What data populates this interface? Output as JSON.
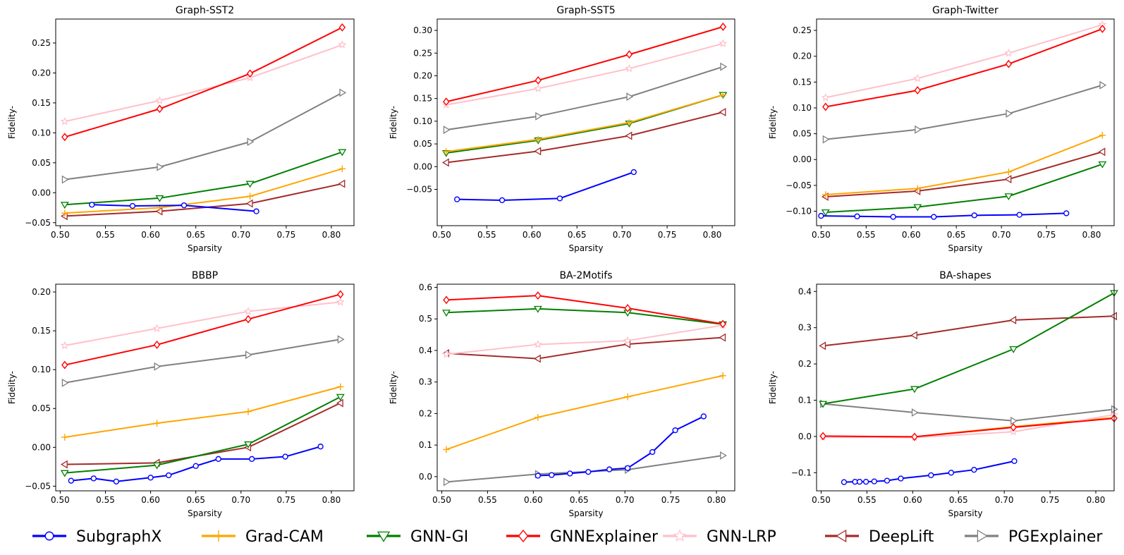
{
  "series_styles": [
    {
      "key": "SubgraphX",
      "color": "#0000ff",
      "marker": "circle"
    },
    {
      "key": "Grad-CAM",
      "color": "#ffa500",
      "marker": "plus"
    },
    {
      "key": "GNN-GI",
      "color": "#008000",
      "marker": "triangle-down"
    },
    {
      "key": "GNNExplainer",
      "color": "#ff0000",
      "marker": "diamond"
    },
    {
      "key": "GNN-LRP",
      "color": "#ffc0cb",
      "marker": "star"
    },
    {
      "key": "DeepLift",
      "color": "#a52a2a",
      "marker": "triangle-left"
    },
    {
      "key": "PGExplainer",
      "color": "#808080",
      "marker": "triangle-right"
    }
  ],
  "legend": {
    "placement": "bottom",
    "items": [
      "SubgraphX",
      "Grad-CAM",
      "GNN-GI",
      "GNNExplainer",
      "GNN-LRP",
      "DeepLift",
      "PGExplainer"
    ]
  },
  "chart_data": [
    {
      "type": "line",
      "title": "Graph-SST2",
      "xlabel": "Sparsity",
      "ylabel": "Fidelity-",
      "xlim": [
        0.495,
        0.825
      ],
      "ylim": [
        -0.055,
        0.29
      ],
      "xticks": [
        "0.50",
        "0.55",
        "0.60",
        "0.65",
        "0.70",
        "0.75",
        "0.80"
      ],
      "yticks": [
        "−0.05",
        "0.00",
        "0.05",
        "0.10",
        "0.15",
        "0.20",
        "0.25"
      ],
      "series": [
        {
          "name": "SubgraphX",
          "x": [
            0.535,
            0.58,
            0.637,
            0.717
          ],
          "y": [
            -0.02,
            -0.022,
            -0.021,
            -0.031
          ]
        },
        {
          "name": "Grad-CAM",
          "x": [
            0.505,
            0.61,
            0.71,
            0.812
          ],
          "y": [
            -0.034,
            -0.025,
            -0.006,
            0.04
          ]
        },
        {
          "name": "GNN-GI",
          "x": [
            0.505,
            0.61,
            0.71,
            0.812
          ],
          "y": [
            -0.02,
            -0.009,
            0.015,
            0.068
          ]
        },
        {
          "name": "GNNExplainer",
          "x": [
            0.505,
            0.61,
            0.71,
            0.812
          ],
          "y": [
            0.093,
            0.14,
            0.199,
            0.276
          ]
        },
        {
          "name": "GNN-LRP",
          "x": [
            0.505,
            0.61,
            0.71,
            0.812
          ],
          "y": [
            0.119,
            0.154,
            0.192,
            0.247
          ]
        },
        {
          "name": "DeepLift",
          "x": [
            0.505,
            0.61,
            0.71,
            0.812
          ],
          "y": [
            -0.039,
            -0.031,
            -0.018,
            0.015
          ]
        },
        {
          "name": "PGExplainer",
          "x": [
            0.505,
            0.61,
            0.71,
            0.812
          ],
          "y": [
            0.022,
            0.043,
            0.085,
            0.167
          ]
        }
      ]
    },
    {
      "type": "line",
      "title": "Graph-SST5",
      "xlabel": "Sparsity",
      "ylabel": "Fidelity-",
      "xlim": [
        0.495,
        0.825
      ],
      "ylim": [
        -0.13,
        0.325
      ],
      "xticks": [
        "0.50",
        "0.55",
        "0.60",
        "0.65",
        "0.70",
        "0.75",
        "0.80"
      ],
      "yticks": [
        "−0.05",
        "0.00",
        "0.05",
        "0.10",
        "0.15",
        "0.20",
        "0.25",
        "0.30"
      ],
      "series": [
        {
          "name": "SubgraphX",
          "x": [
            0.517,
            0.567,
            0.631,
            0.713
          ],
          "y": [
            -0.072,
            -0.074,
            -0.07,
            -0.012
          ]
        },
        {
          "name": "Grad-CAM",
          "x": [
            0.505,
            0.607,
            0.708,
            0.812
          ],
          "y": [
            0.033,
            0.06,
            0.097,
            0.158
          ]
        },
        {
          "name": "GNN-GI",
          "x": [
            0.505,
            0.607,
            0.708,
            0.812
          ],
          "y": [
            0.03,
            0.058,
            0.095,
            0.158
          ]
        },
        {
          "name": "GNNExplainer",
          "x": [
            0.505,
            0.607,
            0.708,
            0.812
          ],
          "y": [
            0.143,
            0.19,
            0.247,
            0.308
          ]
        },
        {
          "name": "GNN-LRP",
          "x": [
            0.505,
            0.607,
            0.708,
            0.812
          ],
          "y": [
            0.136,
            0.172,
            0.216,
            0.271
          ]
        },
        {
          "name": "DeepLift",
          "x": [
            0.505,
            0.607,
            0.708,
            0.812
          ],
          "y": [
            0.009,
            0.034,
            0.068,
            0.12
          ]
        },
        {
          "name": "PGExplainer",
          "x": [
            0.505,
            0.607,
            0.708,
            0.812
          ],
          "y": [
            0.081,
            0.111,
            0.154,
            0.22
          ]
        }
      ]
    },
    {
      "type": "line",
      "title": "Graph-Twitter",
      "xlabel": "Sparsity",
      "ylabel": "Fidelity-",
      "xlim": [
        0.495,
        0.825
      ],
      "ylim": [
        -0.128,
        0.272
      ],
      "xticks": [
        "0.50",
        "0.55",
        "0.60",
        "0.65",
        "0.70",
        "0.75",
        "0.80"
      ],
      "yticks": [
        "−0.10",
        "−0.05",
        "0.00",
        "0.05",
        "0.10",
        "0.15",
        "0.20",
        "0.25"
      ],
      "series": [
        {
          "name": "SubgraphX",
          "x": [
            0.5,
            0.54,
            0.58,
            0.625,
            0.67,
            0.72,
            0.772
          ],
          "y": [
            -0.109,
            -0.11,
            -0.111,
            -0.111,
            -0.108,
            -0.107,
            -0.104
          ]
        },
        {
          "name": "Grad-CAM",
          "x": [
            0.505,
            0.607,
            0.708,
            0.812
          ],
          "y": [
            -0.068,
            -0.056,
            -0.024,
            0.047
          ]
        },
        {
          "name": "GNN-GI",
          "x": [
            0.505,
            0.607,
            0.708,
            0.812
          ],
          "y": [
            -0.102,
            -0.092,
            -0.071,
            -0.009
          ]
        },
        {
          "name": "GNNExplainer",
          "x": [
            0.505,
            0.607,
            0.708,
            0.812
          ],
          "y": [
            0.102,
            0.134,
            0.185,
            0.253
          ]
        },
        {
          "name": "GNN-LRP",
          "x": [
            0.505,
            0.607,
            0.708,
            0.812
          ],
          "y": [
            0.12,
            0.157,
            0.206,
            0.261
          ]
        },
        {
          "name": "DeepLift",
          "x": [
            0.505,
            0.607,
            0.708,
            0.812
          ],
          "y": [
            -0.072,
            -0.061,
            -0.038,
            0.015
          ]
        },
        {
          "name": "PGExplainer",
          "x": [
            0.505,
            0.607,
            0.708,
            0.812
          ],
          "y": [
            0.039,
            0.058,
            0.089,
            0.144
          ]
        }
      ]
    },
    {
      "type": "line",
      "title": "BBBP",
      "xlabel": "Sparsity",
      "ylabel": "Fidelity-",
      "xlim": [
        0.495,
        0.825
      ],
      "ylim": [
        -0.056,
        0.21
      ],
      "xticks": [
        "0.50",
        "0.55",
        "0.60",
        "0.65",
        "0.70",
        "0.75",
        "0.80"
      ],
      "yticks": [
        "−0.05",
        "0.00",
        "0.05",
        "0.10",
        "0.15",
        "0.20"
      ],
      "series": [
        {
          "name": "SubgraphX",
          "x": [
            0.512,
            0.537,
            0.562,
            0.6,
            0.62,
            0.65,
            0.675,
            0.712,
            0.749,
            0.788
          ],
          "y": [
            -0.043,
            -0.04,
            -0.044,
            -0.039,
            -0.036,
            -0.024,
            -0.015,
            -0.015,
            -0.012,
            0.001
          ]
        },
        {
          "name": "Grad-CAM",
          "x": [
            0.505,
            0.607,
            0.708,
            0.81
          ],
          "y": [
            0.013,
            0.031,
            0.046,
            0.078
          ]
        },
        {
          "name": "GNN-GI",
          "x": [
            0.505,
            0.607,
            0.708,
            0.81
          ],
          "y": [
            -0.033,
            -0.023,
            0.004,
            0.065
          ]
        },
        {
          "name": "GNNExplainer",
          "x": [
            0.505,
            0.607,
            0.708,
            0.81
          ],
          "y": [
            0.106,
            0.132,
            0.165,
            0.197
          ]
        },
        {
          "name": "GNN-LRP",
          "x": [
            0.505,
            0.607,
            0.708,
            0.81
          ],
          "y": [
            0.131,
            0.153,
            0.175,
            0.187
          ]
        },
        {
          "name": "DeepLift",
          "x": [
            0.505,
            0.607,
            0.708,
            0.81
          ],
          "y": [
            -0.022,
            -0.02,
            0.0,
            0.057
          ]
        },
        {
          "name": "PGExplainer",
          "x": [
            0.505,
            0.607,
            0.708,
            0.81
          ],
          "y": [
            0.083,
            0.104,
            0.119,
            0.139
          ]
        }
      ]
    },
    {
      "type": "line",
      "title": "BA-2Motifs",
      "xlabel": "Sparsity",
      "ylabel": "Fidelity-",
      "xlim": [
        0.495,
        0.82
      ],
      "ylim": [
        -0.045,
        0.61
      ],
      "xticks": [
        "0.50",
        "0.55",
        "0.60",
        "0.65",
        "0.70",
        "0.75",
        "0.80"
      ],
      "yticks": [
        "0.0",
        "0.1",
        "0.2",
        "0.3",
        "0.4",
        "0.5",
        "0.6"
      ],
      "series": [
        {
          "name": "SubgraphX",
          "x": [
            0.605,
            0.62,
            0.64,
            0.66,
            0.683,
            0.703,
            0.73,
            0.755,
            0.786
          ],
          "y": [
            0.003,
            0.005,
            0.01,
            0.015,
            0.023,
            0.027,
            0.078,
            0.147,
            0.191
          ]
        },
        {
          "name": "Grad-CAM",
          "x": [
            0.505,
            0.605,
            0.703,
            0.807
          ],
          "y": [
            0.086,
            0.188,
            0.253,
            0.32
          ]
        },
        {
          "name": "GNN-GI",
          "x": [
            0.505,
            0.605,
            0.703,
            0.807
          ],
          "y": [
            0.52,
            0.532,
            0.52,
            0.483
          ]
        },
        {
          "name": "GNNExplainer",
          "x": [
            0.505,
            0.605,
            0.703,
            0.807
          ],
          "y": [
            0.56,
            0.574,
            0.534,
            0.484
          ]
        },
        {
          "name": "GNN-LRP",
          "x": [
            0.505,
            0.605,
            0.703,
            0.807
          ],
          "y": [
            0.388,
            0.419,
            0.431,
            0.48
          ]
        },
        {
          "name": "DeepLift",
          "x": [
            0.505,
            0.605,
            0.703,
            0.807
          ],
          "y": [
            0.391,
            0.374,
            0.42,
            0.441
          ]
        },
        {
          "name": "PGExplainer",
          "x": [
            0.505,
            0.605,
            0.703,
            0.807
          ],
          "y": [
            -0.017,
            0.008,
            0.022,
            0.067
          ]
        }
      ]
    },
    {
      "type": "line",
      "title": "BA-shapes",
      "xlabel": "Sparsity",
      "ylabel": "Fidelity-",
      "xlim": [
        0.495,
        0.82
      ],
      "ylim": [
        -0.15,
        0.42
      ],
      "xticks": [
        "0.50",
        "0.55",
        "0.60",
        "0.65",
        "0.70",
        "0.75",
        "0.80"
      ],
      "yticks": [
        "−0.1",
        "0.0",
        "0.1",
        "0.2",
        "0.3",
        "0.4"
      ],
      "series": [
        {
          "name": "SubgraphX",
          "x": [
            0.525,
            0.537,
            0.542,
            0.549,
            0.558,
            0.572,
            0.587,
            0.62,
            0.642,
            0.667,
            0.711
          ],
          "y": [
            -0.126,
            -0.125,
            -0.125,
            -0.125,
            -0.124,
            -0.122,
            -0.116,
            -0.107,
            -0.1,
            -0.092,
            -0.068
          ]
        },
        {
          "name": "Grad-CAM",
          "x": [
            0.502,
            0.602,
            0.71,
            0.82
          ],
          "y": [
            0.0,
            -0.001,
            0.027,
            0.052
          ]
        },
        {
          "name": "GNN-GI",
          "x": [
            0.502,
            0.602,
            0.71,
            0.82
          ],
          "y": [
            0.09,
            0.131,
            0.241,
            0.396
          ]
        },
        {
          "name": "GNNExplainer",
          "x": [
            0.502,
            0.602,
            0.71,
            0.82
          ],
          "y": [
            0.001,
            -0.001,
            0.025,
            0.05
          ]
        },
        {
          "name": "GNN-LRP",
          "x": [
            0.502,
            0.602,
            0.71,
            0.82
          ],
          "y": [
            -0.002,
            -0.003,
            0.013,
            0.06
          ]
        },
        {
          "name": "DeepLift",
          "x": [
            0.502,
            0.602,
            0.71,
            0.82
          ],
          "y": [
            0.25,
            0.279,
            0.321,
            0.332
          ]
        },
        {
          "name": "PGExplainer",
          "x": [
            0.502,
            0.602,
            0.71,
            0.82
          ],
          "y": [
            0.09,
            0.066,
            0.043,
            0.075
          ]
        }
      ]
    }
  ]
}
